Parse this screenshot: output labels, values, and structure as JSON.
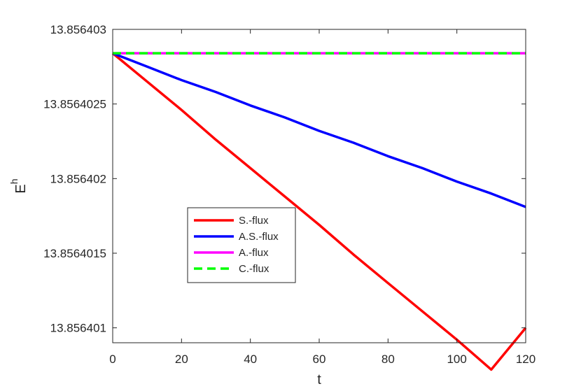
{
  "chart_data": {
    "type": "line",
    "title": "",
    "xlabel": "t",
    "ylabel": "E",
    "ylabel_superscript": "h",
    "xlim": [
      0,
      120
    ],
    "ylim": [
      13.8564009,
      13.856403
    ],
    "x_ticks": [
      0,
      20,
      40,
      60,
      80,
      100,
      120
    ],
    "x_tick_labels": [
      "0",
      "20",
      "40",
      "60",
      "80",
      "100",
      "120"
    ],
    "y_ticks": [
      13.856401,
      13.8564015,
      13.856402,
      13.8564025,
      13.856403
    ],
    "y_tick_labels": [
      "13.856401",
      "13.8564015",
      "13.856402",
      "13.8564025",
      "13.856403"
    ],
    "grid": false,
    "legend_position": "lower-left",
    "series": [
      {
        "name": "S.-flux",
        "color": "#ff0000",
        "dash": "solid",
        "x": [
          0,
          10,
          20,
          30,
          40,
          50,
          60,
          70,
          80,
          90,
          100,
          110,
          120
        ],
        "y": [
          13.85640284,
          13.85640265,
          13.85640246,
          13.85640226,
          13.85640207,
          13.85640188,
          13.85640169,
          13.85640149,
          13.8564013,
          13.85640111,
          13.85640092,
          13.85640072,
          13.856401
        ]
      },
      {
        "name": "A.S.-flux",
        "color": "#0000ff",
        "dash": "solid",
        "x": [
          0,
          10,
          20,
          30,
          40,
          50,
          60,
          70,
          80,
          90,
          100,
          110,
          120
        ],
        "y": [
          13.85640284,
          13.85640275,
          13.85640266,
          13.85640258,
          13.85640249,
          13.85640241,
          13.85640232,
          13.85640224,
          13.85640215,
          13.85640207,
          13.85640198,
          13.8564019,
          13.85640181
        ]
      },
      {
        "name": "A.-flux",
        "color": "#ff00ff",
        "dash": "solid",
        "x": [
          0,
          120
        ],
        "y": [
          13.85640284,
          13.85640284
        ]
      },
      {
        "name": "C.-flux",
        "color": "#00ff00",
        "dash": "dashed",
        "x": [
          0,
          120
        ],
        "y": [
          13.85640284,
          13.85640284
        ]
      }
    ]
  }
}
